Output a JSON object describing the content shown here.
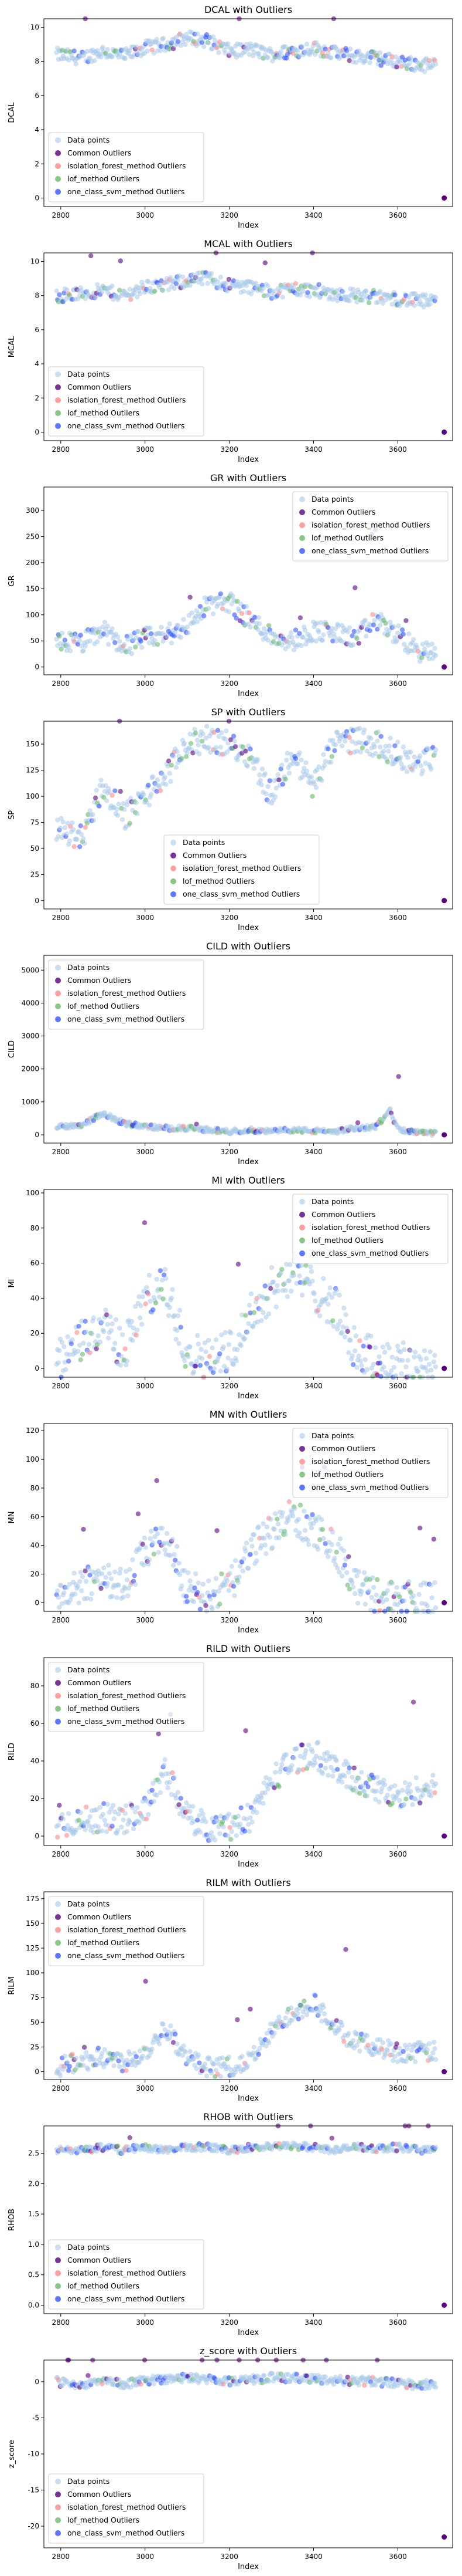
{
  "figure": {
    "legend_labels": [
      "Data points",
      "Common Outliers",
      "isolation_forest_method Outliers",
      "lof_method Outliers",
      "one_class_svm_method Outliers"
    ],
    "legend_colors": [
      "#a8c8e8",
      "#5a0080",
      "#ff8888",
      "#66bb66",
      "#3355ff"
    ],
    "xlabel": "Index"
  },
  "chart_data": [
    {
      "type": "scatter",
      "title": "DCAL with Outliers",
      "xlabel": "Index",
      "ylabel": "DCAL",
      "xlim": [
        2760,
        3730
      ],
      "ylim": [
        -0.5,
        10.5
      ],
      "xticks": [
        2800,
        3000,
        3200,
        3400,
        3600
      ],
      "yticks": [
        0,
        2,
        4,
        6,
        8,
        10
      ],
      "legend": "lower-left",
      "isolated": [
        3710,
        0
      ],
      "profile": [
        [
          2790,
          8.4
        ],
        [
          2850,
          8.2
        ],
        [
          2900,
          8.6
        ],
        [
          2950,
          8.3
        ],
        [
          3000,
          8.8
        ],
        [
          3050,
          9.0
        ],
        [
          3100,
          9.4
        ],
        [
          3150,
          9.2
        ],
        [
          3200,
          8.6
        ],
        [
          3250,
          8.7
        ],
        [
          3300,
          8.4
        ],
        [
          3350,
          8.6
        ],
        [
          3400,
          8.8
        ],
        [
          3450,
          8.5
        ],
        [
          3500,
          8.3
        ],
        [
          3550,
          8.2
        ],
        [
          3600,
          8.0
        ],
        [
          3650,
          7.8
        ],
        [
          3690,
          7.8
        ]
      ],
      "spread": 0.8
    },
    {
      "type": "scatter",
      "title": "MCAL with Outliers",
      "xlabel": "Index",
      "ylabel": "MCAL",
      "xlim": [
        2760,
        3730
      ],
      "ylim": [
        -0.5,
        10.5
      ],
      "xticks": [
        2800,
        3000,
        3200,
        3400,
        3600
      ],
      "yticks": [
        0,
        2,
        4,
        6,
        8,
        10
      ],
      "legend": "lower-left",
      "isolated": [
        3710,
        0
      ],
      "profile": [
        [
          2790,
          8.0
        ],
        [
          2850,
          8.1
        ],
        [
          2900,
          8.3
        ],
        [
          2950,
          8.0
        ],
        [
          3000,
          8.5
        ],
        [
          3050,
          8.6
        ],
        [
          3100,
          8.9
        ],
        [
          3150,
          9.0
        ],
        [
          3200,
          8.6
        ],
        [
          3250,
          8.5
        ],
        [
          3300,
          8.2
        ],
        [
          3350,
          8.4
        ],
        [
          3400,
          8.3
        ],
        [
          3450,
          8.1
        ],
        [
          3500,
          8.0
        ],
        [
          3550,
          7.9
        ],
        [
          3600,
          7.8
        ],
        [
          3650,
          7.7
        ],
        [
          3690,
          7.6
        ]
      ],
      "spread": 0.8
    },
    {
      "type": "scatter",
      "title": "GR with Outliers",
      "xlabel": "Index",
      "ylabel": "GR",
      "xlim": [
        2760,
        3730
      ],
      "ylim": [
        -15,
        345
      ],
      "xticks": [
        2800,
        3000,
        3200,
        3400,
        3600
      ],
      "yticks": [
        0,
        50,
        100,
        150,
        200,
        250,
        300
      ],
      "legend": "upper-right",
      "isolated": [
        3710,
        0
      ],
      "profile": [
        [
          2790,
          50
        ],
        [
          2850,
          45
        ],
        [
          2900,
          70
        ],
        [
          2950,
          40
        ],
        [
          3000,
          55
        ],
        [
          3050,
          60
        ],
        [
          3100,
          80
        ],
        [
          3150,
          120
        ],
        [
          3200,
          125
        ],
        [
          3250,
          90
        ],
        [
          3300,
          60
        ],
        [
          3350,
          50
        ],
        [
          3400,
          70
        ],
        [
          3450,
          65
        ],
        [
          3500,
          55
        ],
        [
          3550,
          90
        ],
        [
          3600,
          60
        ],
        [
          3650,
          30
        ],
        [
          3690,
          25
        ]
      ],
      "spread": 40
    },
    {
      "type": "scatter",
      "title": "SP with Outliers",
      "xlabel": "Index",
      "ylabel": "SP",
      "xlim": [
        2760,
        3730
      ],
      "ylim": [
        -8,
        172
      ],
      "xticks": [
        2800,
        3000,
        3200,
        3400,
        3600
      ],
      "yticks": [
        0,
        25,
        50,
        75,
        100,
        125,
        150
      ],
      "legend": "lower-center",
      "isolated": [
        3710,
        0
      ],
      "profile": [
        [
          2790,
          70
        ],
        [
          2850,
          60
        ],
        [
          2900,
          110
        ],
        [
          2950,
          80
        ],
        [
          3000,
          100
        ],
        [
          3050,
          120
        ],
        [
          3100,
          150
        ],
        [
          3150,
          155
        ],
        [
          3200,
          150
        ],
        [
          3250,
          140
        ],
        [
          3300,
          100
        ],
        [
          3350,
          140
        ],
        [
          3400,
          110
        ],
        [
          3450,
          150
        ],
        [
          3500,
          155
        ],
        [
          3550,
          150
        ],
        [
          3600,
          140
        ],
        [
          3650,
          130
        ],
        [
          3690,
          140
        ]
      ],
      "spread": 25
    },
    {
      "type": "scatter",
      "title": "CILD with Outliers",
      "xlabel": "Index",
      "ylabel": "CILD",
      "xlim": [
        2760,
        3730
      ],
      "ylim": [
        -250,
        5450
      ],
      "xticks": [
        2800,
        3000,
        3200,
        3400,
        3600
      ],
      "yticks": [
        0,
        1000,
        2000,
        3000,
        4000,
        5000
      ],
      "legend": "upper-left",
      "isolated": [
        3710,
        0
      ],
      "profile": [
        [
          2790,
          250
        ],
        [
          2850,
          300
        ],
        [
          2900,
          650
        ],
        [
          2950,
          350
        ],
        [
          3000,
          250
        ],
        [
          3050,
          200
        ],
        [
          3100,
          200
        ],
        [
          3150,
          150
        ],
        [
          3200,
          100
        ],
        [
          3250,
          150
        ],
        [
          3300,
          100
        ],
        [
          3350,
          150
        ],
        [
          3400,
          120
        ],
        [
          3450,
          100
        ],
        [
          3500,
          200
        ],
        [
          3550,
          250
        ],
        [
          3580,
          800
        ],
        [
          3600,
          150
        ],
        [
          3650,
          60
        ],
        [
          3690,
          40
        ]
      ],
      "spread": 150
    },
    {
      "type": "scatter",
      "title": "MI with Outliers",
      "xlabel": "Index",
      "ylabel": "MI",
      "xlim": [
        2760,
        3730
      ],
      "ylim": [
        -5,
        102
      ],
      "xticks": [
        2800,
        3000,
        3200,
        3400,
        3600
      ],
      "yticks": [
        0,
        20,
        40,
        60,
        80,
        100
      ],
      "legend": "upper-right",
      "isolated": [
        3710,
        0
      ],
      "profile": [
        [
          2790,
          5
        ],
        [
          2850,
          15
        ],
        [
          2900,
          25
        ],
        [
          2950,
          10
        ],
        [
          3000,
          40
        ],
        [
          3050,
          45
        ],
        [
          3100,
          10
        ],
        [
          3150,
          5
        ],
        [
          3200,
          10
        ],
        [
          3250,
          30
        ],
        [
          3300,
          45
        ],
        [
          3350,
          55
        ],
        [
          3400,
          45
        ],
        [
          3450,
          35
        ],
        [
          3500,
          10
        ],
        [
          3550,
          5
        ],
        [
          3600,
          3
        ],
        [
          3650,
          2
        ],
        [
          3690,
          2
        ]
      ],
      "spread": 25
    },
    {
      "type": "scatter",
      "title": "MN with Outliers",
      "xlabel": "Index",
      "ylabel": "MN",
      "xlim": [
        2760,
        3730
      ],
      "ylim": [
        -6,
        125
      ],
      "xticks": [
        2800,
        3000,
        3200,
        3400,
        3600
      ],
      "yticks": [
        0,
        20,
        40,
        60,
        80,
        100,
        120
      ],
      "legend": "upper-right",
      "isolated": [
        3710,
        0
      ],
      "profile": [
        [
          2790,
          5
        ],
        [
          2850,
          10
        ],
        [
          2900,
          20
        ],
        [
          2950,
          10
        ],
        [
          3000,
          35
        ],
        [
          3050,
          45
        ],
        [
          3100,
          10
        ],
        [
          3150,
          5
        ],
        [
          3200,
          10
        ],
        [
          3250,
          35
        ],
        [
          3300,
          50
        ],
        [
          3350,
          60
        ],
        [
          3400,
          50
        ],
        [
          3450,
          40
        ],
        [
          3500,
          12
        ],
        [
          3550,
          5
        ],
        [
          3600,
          3
        ],
        [
          3650,
          2
        ],
        [
          3690,
          2
        ]
      ],
      "spread": 25
    },
    {
      "type": "scatter",
      "title": "RILD with Outliers",
      "xlabel": "Index",
      "ylabel": "RILD",
      "xlim": [
        2760,
        3730
      ],
      "ylim": [
        -5,
        95
      ],
      "xticks": [
        2800,
        3000,
        3200,
        3400,
        3600
      ],
      "yticks": [
        0,
        20,
        40,
        60,
        80
      ],
      "legend": "upper-left",
      "isolated": [
        3710,
        0
      ],
      "profile": [
        [
          2790,
          5
        ],
        [
          2850,
          8
        ],
        [
          2900,
          10
        ],
        [
          2950,
          8
        ],
        [
          3000,
          15
        ],
        [
          3050,
          35
        ],
        [
          3100,
          10
        ],
        [
          3150,
          5
        ],
        [
          3200,
          5
        ],
        [
          3250,
          10
        ],
        [
          3300,
          30
        ],
        [
          3350,
          40
        ],
        [
          3400,
          45
        ],
        [
          3450,
          35
        ],
        [
          3500,
          30
        ],
        [
          3550,
          25
        ],
        [
          3600,
          20
        ],
        [
          3650,
          25
        ],
        [
          3690,
          25
        ]
      ],
      "spread": 15
    },
    {
      "type": "scatter",
      "title": "RILM with Outliers",
      "xlabel": "Index",
      "ylabel": "RILM",
      "xlim": [
        2760,
        3730
      ],
      "ylim": [
        -8,
        182
      ],
      "xticks": [
        2800,
        3000,
        3200,
        3400,
        3600
      ],
      "yticks": [
        0,
        25,
        50,
        75,
        100,
        125,
        150,
        175
      ],
      "legend": "upper-left",
      "isolated": [
        3710,
        0
      ],
      "profile": [
        [
          2790,
          5
        ],
        [
          2850,
          10
        ],
        [
          2900,
          15
        ],
        [
          2950,
          10
        ],
        [
          3000,
          20
        ],
        [
          3050,
          45
        ],
        [
          3100,
          12
        ],
        [
          3150,
          5
        ],
        [
          3200,
          5
        ],
        [
          3250,
          10
        ],
        [
          3300,
          40
        ],
        [
          3350,
          60
        ],
        [
          3400,
          70
        ],
        [
          3450,
          45
        ],
        [
          3500,
          30
        ],
        [
          3550,
          25
        ],
        [
          3600,
          20
        ],
        [
          3650,
          20
        ],
        [
          3690,
          20
        ]
      ],
      "spread": 20
    },
    {
      "type": "scatter",
      "title": "RHOB with Outliers",
      "xlabel": "Index",
      "ylabel": "RHOB",
      "xlim": [
        2760,
        3730
      ],
      "ylim": [
        -0.14,
        2.95
      ],
      "xticks": [
        2800,
        3000,
        3200,
        3400,
        3600
      ],
      "yticks": [
        0.0,
        0.5,
        1.0,
        1.5,
        2.0,
        2.5
      ],
      "legend": "lower-left",
      "isolated": [
        3710,
        0
      ],
      "profile": [
        [
          2790,
          2.55
        ],
        [
          2850,
          2.55
        ],
        [
          2900,
          2.6
        ],
        [
          2950,
          2.55
        ],
        [
          3000,
          2.6
        ],
        [
          3050,
          2.55
        ],
        [
          3100,
          2.6
        ],
        [
          3150,
          2.6
        ],
        [
          3200,
          2.55
        ],
        [
          3250,
          2.6
        ],
        [
          3300,
          2.6
        ],
        [
          3350,
          2.62
        ],
        [
          3400,
          2.6
        ],
        [
          3450,
          2.55
        ],
        [
          3500,
          2.6
        ],
        [
          3550,
          2.58
        ],
        [
          3600,
          2.6
        ],
        [
          3650,
          2.55
        ],
        [
          3690,
          2.6
        ]
      ],
      "spread": 0.12
    },
    {
      "type": "scatter",
      "title": "z_score with Outliers",
      "xlabel": "Index",
      "ylabel": "z_score",
      "xlim": [
        2760,
        3730
      ],
      "ylim": [
        -23,
        3
      ],
      "xticks": [
        2800,
        3000,
        3200,
        3400,
        3600
      ],
      "yticks": [
        -20,
        -15,
        -10,
        -5,
        0
      ],
      "legend": "lower-left",
      "isolated": [
        3710,
        -21.5
      ],
      "profile": [
        [
          2790,
          0
        ],
        [
          2850,
          -0.5
        ],
        [
          2900,
          0.3
        ],
        [
          2950,
          -0.4
        ],
        [
          3000,
          0.2
        ],
        [
          3050,
          0.4
        ],
        [
          3100,
          0.5
        ],
        [
          3150,
          0.4
        ],
        [
          3200,
          0.1
        ],
        [
          3250,
          0.3
        ],
        [
          3300,
          0.6
        ],
        [
          3350,
          0.5
        ],
        [
          3400,
          0.4
        ],
        [
          3450,
          0.2
        ],
        [
          3500,
          0.1
        ],
        [
          3550,
          0.0
        ],
        [
          3600,
          -0.2
        ],
        [
          3650,
          -0.5
        ],
        [
          3690,
          -0.3
        ]
      ],
      "spread": 1.2
    }
  ]
}
